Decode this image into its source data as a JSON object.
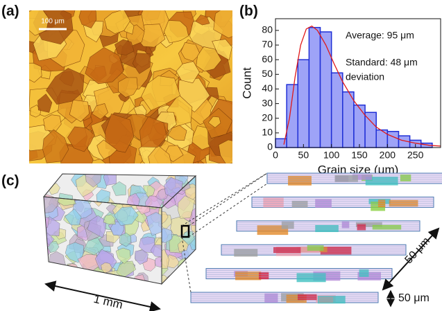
{
  "panel_a": {
    "label": "(a)",
    "scale_bar": "100 μm"
  },
  "chart_data": {
    "type": "histogram",
    "panel_label": "(b)",
    "xlabel": "Grain size (μm)",
    "ylabel": "Count",
    "bins": [
      0,
      20,
      40,
      60,
      80,
      100,
      120,
      140,
      160,
      180,
      200,
      220,
      240,
      260,
      280
    ],
    "values": [
      6,
      43,
      60,
      82,
      79,
      51,
      38,
      29,
      24,
      12,
      11,
      8,
      5,
      3
    ],
    "color": "#9ea3f7",
    "edge_color": "#1f2fd6",
    "fit": {
      "color": "#e01818",
      "x": [
        15,
        25,
        35,
        45,
        55,
        65,
        75,
        90,
        105,
        120,
        140,
        160,
        180,
        200,
        225,
        250,
        275,
        295
      ],
      "y": [
        2,
        20,
        48,
        70,
        81,
        83,
        80,
        70,
        57,
        45,
        32,
        22,
        14,
        9,
        5,
        3,
        1.5,
        1
      ]
    },
    "annotations": [
      "Average: 95 μm",
      "Standard: 48 μm",
      "deviation"
    ],
    "xlim": [
      0,
      295
    ],
    "ylim": [
      0,
      88
    ],
    "xticks": [
      0,
      50,
      100,
      150,
      200,
      250
    ],
    "yticks": [
      0,
      10,
      20,
      30,
      40,
      50,
      60,
      70,
      80
    ]
  },
  "panel_c": {
    "label": "(c)",
    "length": "1 mm",
    "slab_spacing": "50 μm",
    "slab_thickness": "50 μm"
  }
}
